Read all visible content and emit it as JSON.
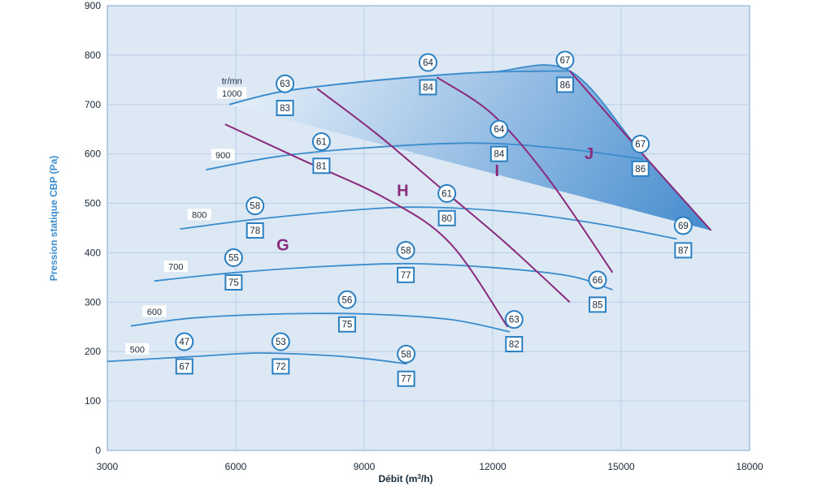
{
  "chart_data": {
    "type": "fan-performance-map",
    "xlabel": "Débit (m",
    "xlabel_sup": "3",
    "xlabel_end": "/h)",
    "ylabel": "Pression statique CBP (Pa)",
    "x_ticks": [
      3000,
      6000,
      9000,
      12000,
      15000,
      18000
    ],
    "y_ticks": [
      0,
      100,
      200,
      300,
      400,
      500,
      600,
      700,
      800,
      900
    ],
    "xlim": [
      3000,
      18000
    ],
    "ylim": [
      0,
      900
    ],
    "grid": true,
    "colors": {
      "plot_bg": "#dde8f5",
      "grid": "#b9cfe8",
      "region_light": "#eef4fb",
      "region_dark": "#4a8fd0",
      "curve": "#3a8ccc",
      "boundary": "#8a2a7a",
      "text": "#1a2a3a",
      "axis_title": "#3a8ccc",
      "zone_text": "#8a2a7a",
      "marker_stroke": "#2a7fc0"
    },
    "rpm_unit": "tr/mn",
    "envelope": {
      "top": [
        [
          5850,
          700
        ],
        [
          7000,
          725
        ],
        [
          8500,
          742
        ],
        [
          10500,
          758
        ],
        [
          12000,
          766
        ],
        [
          13800,
          768
        ],
        [
          15500,
          600
        ],
        [
          17100,
          445
        ]
      ],
      "right": [
        [
          17100,
          445
        ],
        [
          16000,
          410
        ],
        [
          14800,
          360
        ],
        [
          13800,
          300
        ],
        [
          12400,
          240
        ],
        [
          10000,
          175
        ]
      ],
      "bottom": [
        [
          10000,
          175
        ],
        [
          9000,
          186
        ],
        [
          8000,
          193
        ],
        [
          6500,
          197
        ],
        [
          5000,
          190
        ],
        [
          3000,
          180
        ]
      ],
      "left": [
        [
          3000,
          180
        ],
        [
          3500,
          255
        ],
        [
          4100,
          345
        ],
        [
          4700,
          450
        ],
        [
          5300,
          570
        ],
        [
          5850,
          700
        ]
      ]
    },
    "speed_curves": [
      {
        "label": "1000",
        "points": [
          [
            5850,
            700
          ],
          [
            7000,
            725
          ],
          [
            8500,
            742
          ],
          [
            10500,
            758
          ],
          [
            12000,
            766
          ],
          [
            13800,
            768
          ]
        ]
      },
      {
        "label": "900",
        "points": [
          [
            5300,
            568
          ],
          [
            7000,
            595
          ],
          [
            9000,
            612
          ],
          [
            11500,
            622
          ],
          [
            13500,
            612
          ],
          [
            15500,
            590
          ]
        ]
      },
      {
        "label": "800",
        "points": [
          [
            4700,
            448
          ],
          [
            6500,
            468
          ],
          [
            9000,
            488
          ],
          [
            10500,
            492
          ],
          [
            12500,
            482
          ],
          [
            14500,
            458
          ],
          [
            16300,
            428
          ]
        ]
      },
      {
        "label": "700",
        "points": [
          [
            4100,
            343
          ],
          [
            6000,
            360
          ],
          [
            8000,
            372
          ],
          [
            10000,
            378
          ],
          [
            12000,
            370
          ],
          [
            13800,
            353
          ],
          [
            14800,
            325
          ]
        ]
      },
      {
        "label": "600",
        "points": [
          [
            3550,
            252
          ],
          [
            5000,
            268
          ],
          [
            7000,
            276
          ],
          [
            9000,
            276
          ],
          [
            11000,
            265
          ],
          [
            12400,
            240
          ]
        ]
      },
      {
        "label": "500",
        "points": [
          [
            3000,
            180
          ],
          [
            5000,
            190
          ],
          [
            6500,
            197
          ],
          [
            8000,
            193
          ],
          [
            9000,
            186
          ],
          [
            10000,
            175
          ]
        ]
      }
    ],
    "zone_boundaries": [
      {
        "name": "G/H",
        "points": [
          [
            5750,
            660
          ],
          [
            7500,
            590
          ],
          [
            9500,
            510
          ],
          [
            11000,
            420
          ],
          [
            12350,
            250
          ]
        ]
      },
      {
        "name": "H/I",
        "points": [
          [
            7900,
            732
          ],
          [
            9300,
            640
          ],
          [
            10800,
            530
          ],
          [
            12300,
            420
          ],
          [
            13800,
            300
          ]
        ]
      },
      {
        "name": "I/J",
        "points": [
          [
            10700,
            755
          ],
          [
            12000,
            680
          ],
          [
            13300,
            550
          ],
          [
            14800,
            360
          ]
        ]
      },
      {
        "name": "J-edge",
        "points": [
          [
            13800,
            768
          ],
          [
            15500,
            600
          ],
          [
            17100,
            445
          ]
        ]
      }
    ],
    "zones": [
      {
        "label": "G",
        "x": 7100,
        "y": 405
      },
      {
        "label": "H",
        "x": 9900,
        "y": 515
      },
      {
        "label": "I",
        "x": 12100,
        "y": 555
      },
      {
        "label": "J",
        "x": 14250,
        "y": 590
      }
    ],
    "rpm_labels": [
      {
        "label": "1000",
        "x": 5910,
        "y": 722
      },
      {
        "label": "900",
        "x": 5700,
        "y": 597
      },
      {
        "label": "800",
        "x": 5150,
        "y": 476
      },
      {
        "label": "700",
        "x": 4600,
        "y": 371
      },
      {
        "label": "600",
        "x": 4100,
        "y": 280
      },
      {
        "label": "500",
        "x": 3700,
        "y": 204
      }
    ],
    "circle_markers": [
      {
        "value": "63",
        "x": 7150,
        "y": 742
      },
      {
        "value": "64",
        "x": 10490,
        "y": 785
      },
      {
        "value": "67",
        "x": 13690,
        "y": 790
      },
      {
        "value": "61",
        "x": 8000,
        "y": 625
      },
      {
        "value": "64",
        "x": 12150,
        "y": 650
      },
      {
        "value": "67",
        "x": 15450,
        "y": 620
      },
      {
        "value": "58",
        "x": 6450,
        "y": 495
      },
      {
        "value": "61",
        "x": 10930,
        "y": 520
      },
      {
        "value": "69",
        "x": 16450,
        "y": 455
      },
      {
        "value": "55",
        "x": 5950,
        "y": 390
      },
      {
        "value": "58",
        "x": 9970,
        "y": 405
      },
      {
        "value": "66",
        "x": 14450,
        "y": 345
      },
      {
        "value": "56",
        "x": 8600,
        "y": 305
      },
      {
        "value": "63",
        "x": 12500,
        "y": 265
      },
      {
        "value": "47",
        "x": 4800,
        "y": 220
      },
      {
        "value": "53",
        "x": 7050,
        "y": 220
      },
      {
        "value": "58",
        "x": 9980,
        "y": 195
      }
    ],
    "box_markers": [
      {
        "value": "83",
        "x": 7150,
        "y": 693
      },
      {
        "value": "84",
        "x": 10490,
        "y": 735
      },
      {
        "value": "86",
        "x": 13690,
        "y": 740
      },
      {
        "value": "81",
        "x": 8000,
        "y": 576
      },
      {
        "value": "84",
        "x": 12150,
        "y": 600
      },
      {
        "value": "86",
        "x": 15450,
        "y": 570
      },
      {
        "value": "78",
        "x": 6450,
        "y": 445
      },
      {
        "value": "80",
        "x": 10930,
        "y": 470
      },
      {
        "value": "87",
        "x": 16450,
        "y": 405
      },
      {
        "value": "75",
        "x": 5950,
        "y": 340
      },
      {
        "value": "77",
        "x": 9970,
        "y": 355
      },
      {
        "value": "85",
        "x": 14450,
        "y": 295
      },
      {
        "value": "75",
        "x": 8600,
        "y": 255
      },
      {
        "value": "82",
        "x": 12500,
        "y": 215
      },
      {
        "value": "67",
        "x": 4800,
        "y": 170
      },
      {
        "value": "72",
        "x": 7050,
        "y": 170
      },
      {
        "value": "77",
        "x": 9980,
        "y": 145
      }
    ]
  }
}
